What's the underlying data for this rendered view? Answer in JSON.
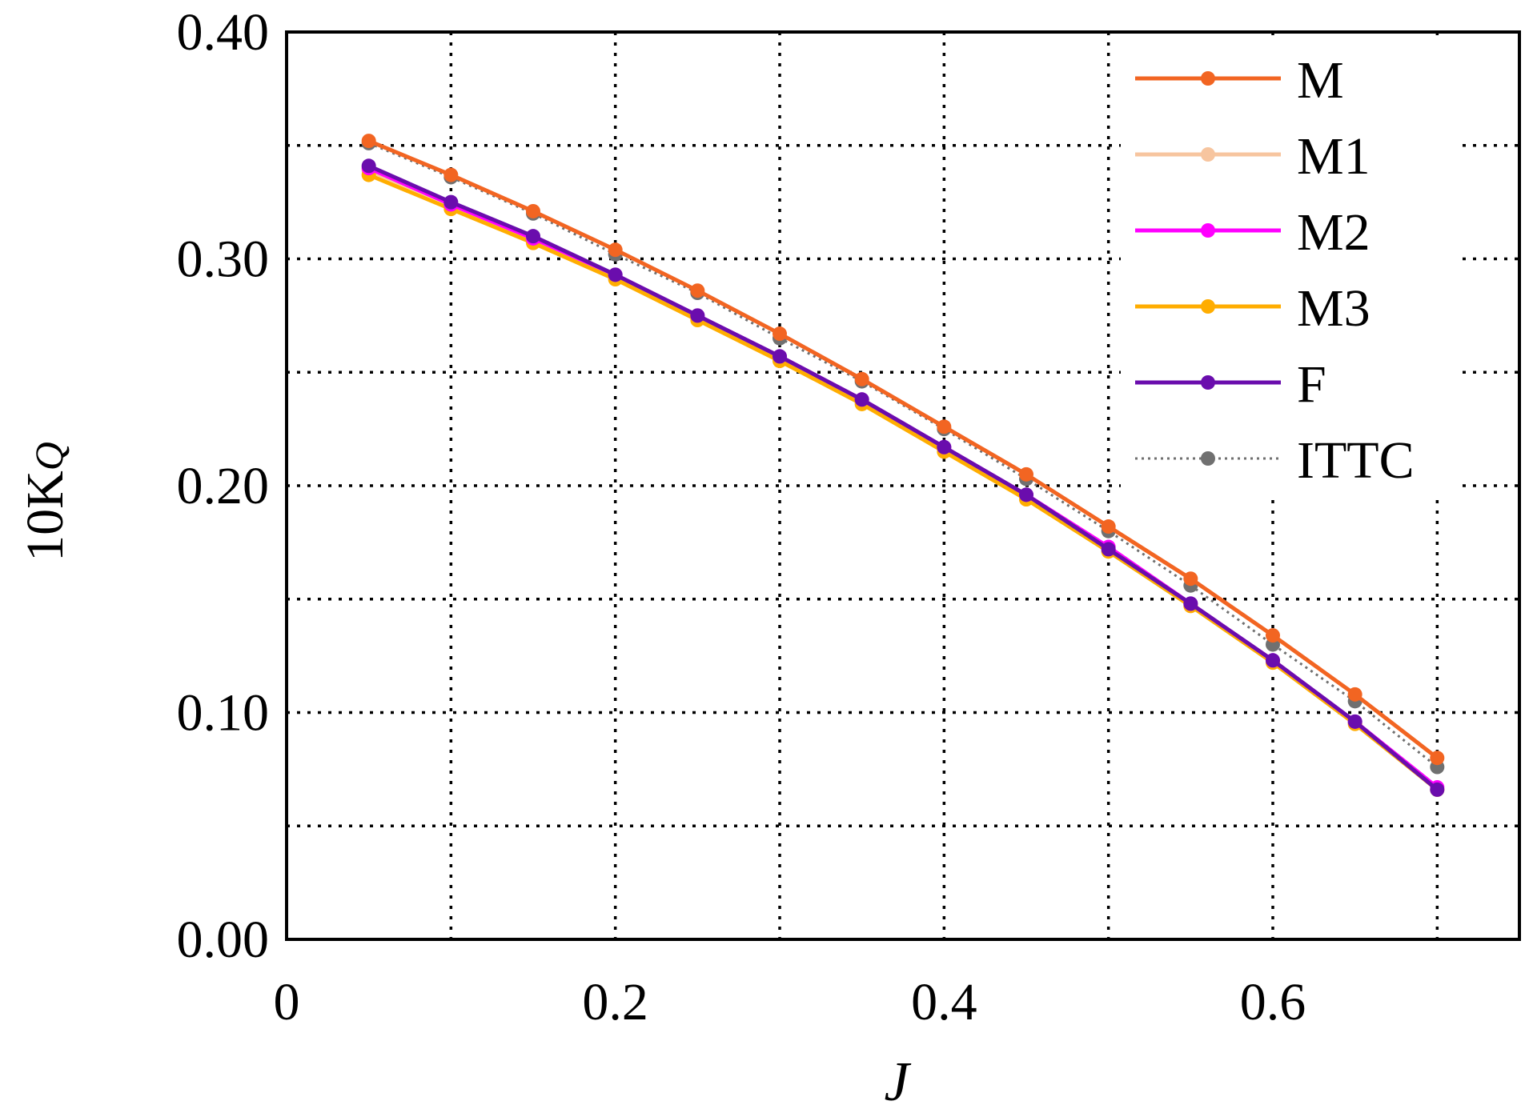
{
  "chart_data": {
    "type": "line",
    "xlabel": "J",
    "ylabel_main": "10K",
    "ylabel_sub": "Q",
    "xlim": [
      0,
      0.75
    ],
    "ylim": [
      0,
      0.4
    ],
    "xticks": [
      0,
      0.1,
      0.2,
      0.3,
      0.4,
      0.5,
      0.6,
      0.7
    ],
    "xtick_labels": [
      "0",
      "0.2",
      "0.4",
      "0.6"
    ],
    "xtick_label_values": [
      0,
      0.2,
      0.4,
      0.6
    ],
    "yticks": [
      0,
      0.05,
      0.1,
      0.15,
      0.2,
      0.25,
      0.3,
      0.35,
      0.4
    ],
    "ytick_labels": [
      "0.00",
      "0.10",
      "0.20",
      "0.30",
      "0.40"
    ],
    "ytick_label_values": [
      0,
      0.1,
      0.2,
      0.3,
      0.4
    ],
    "grid": true,
    "legend_position": "top-right",
    "x": [
      0.05,
      0.1,
      0.15,
      0.2,
      0.25,
      0.3,
      0.35,
      0.4,
      0.45,
      0.5,
      0.55,
      0.6,
      0.65,
      0.7
    ],
    "series": [
      {
        "name": "M",
        "color": "#f26522",
        "style": "solid",
        "values": [
          0.352,
          0.337,
          0.321,
          0.304,
          0.286,
          0.267,
          0.247,
          0.226,
          0.205,
          0.182,
          0.159,
          0.134,
          0.108,
          0.08
        ]
      },
      {
        "name": "M1",
        "color": "#f7c59f",
        "style": "solid",
        "values": [
          0.339,
          0.324,
          0.308,
          0.292,
          0.274,
          0.256,
          0.237,
          0.216,
          0.194,
          0.171,
          0.147,
          0.122,
          0.095,
          0.066
        ]
      },
      {
        "name": "M2",
        "color": "#ff00ff",
        "style": "solid",
        "values": [
          0.34,
          0.324,
          0.309,
          0.293,
          0.275,
          0.257,
          0.238,
          0.217,
          0.196,
          0.173,
          0.148,
          0.123,
          0.096,
          0.067
        ]
      },
      {
        "name": "M3",
        "color": "#ffad00",
        "style": "solid",
        "values": [
          0.337,
          0.322,
          0.307,
          0.291,
          0.273,
          0.255,
          0.236,
          0.215,
          0.194,
          0.171,
          0.147,
          0.122,
          0.095,
          0.066
        ]
      },
      {
        "name": "F",
        "color": "#6a0dad",
        "style": "solid",
        "values": [
          0.341,
          0.325,
          0.31,
          0.293,
          0.275,
          0.257,
          0.238,
          0.217,
          0.196,
          0.172,
          0.148,
          0.123,
          0.096,
          0.066
        ]
      },
      {
        "name": "ITTC",
        "color": "#707070",
        "style": "dotted",
        "values": [
          0.351,
          0.336,
          0.32,
          0.302,
          0.285,
          0.265,
          0.246,
          0.225,
          0.203,
          0.18,
          0.156,
          0.13,
          0.105,
          0.076
        ]
      }
    ]
  }
}
